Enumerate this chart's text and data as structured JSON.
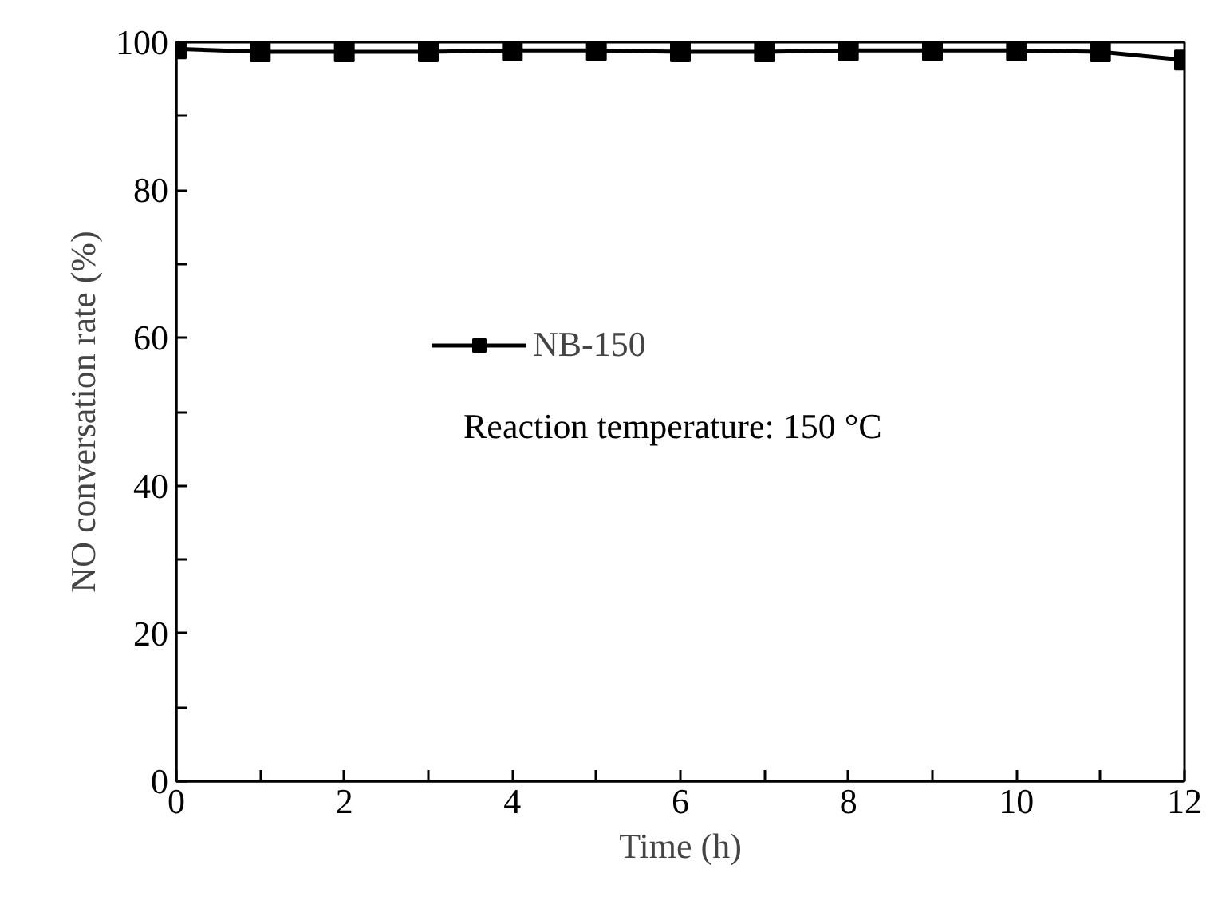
{
  "chart_data": {
    "type": "line",
    "xlabel": "Time (h)",
    "ylabel": "NO conversation rate (%)",
    "x": [
      0,
      1,
      2,
      3,
      4,
      5,
      6,
      7,
      8,
      9,
      10,
      11,
      12
    ],
    "series": [
      {
        "name": "NB-150",
        "color": "#000000",
        "values": [
          99.1,
          98.7,
          98.7,
          98.7,
          98.9,
          98.9,
          98.7,
          98.7,
          98.9,
          98.9,
          98.9,
          98.7,
          97.6
        ]
      }
    ],
    "xlim": [
      0,
      12
    ],
    "ylim": [
      0,
      100
    ],
    "xticks": [
      0,
      {
        "value": 1,
        "label": null
      },
      2,
      {
        "value": 3,
        "label": null
      },
      4,
      {
        "value": 5,
        "label": null
      },
      6,
      {
        "value": 7,
        "label": null
      },
      8,
      {
        "value": 9,
        "label": null
      },
      10,
      {
        "value": 11,
        "label": null
      },
      12
    ],
    "yticks": [
      0,
      {
        "value": 10,
        "label": null
      },
      20,
      {
        "value": 30,
        "label": null
      },
      40,
      {
        "value": 50,
        "label": null
      },
      60,
      {
        "value": 70,
        "label": null
      },
      80,
      {
        "value": 90,
        "label": null
      },
      100
    ],
    "annotations": [
      "Reaction temperature: 150 °C"
    ],
    "legend": "center left",
    "marker": "square",
    "line_style": "solid",
    "grid": false
  }
}
